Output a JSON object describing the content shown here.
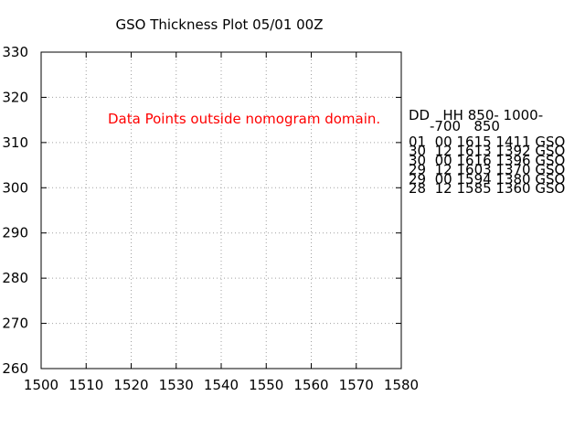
{
  "chart_data": {
    "type": "scatter",
    "title": "GSO Thickness Plot 05/01 00Z",
    "xlim": [
      1500,
      1580
    ],
    "xticks": [
      1500,
      1510,
      1520,
      1530,
      1540,
      1550,
      1560,
      1570,
      1580
    ],
    "ylim": [
      260,
      330
    ],
    "yticks": [
      260,
      270,
      280,
      290,
      300,
      310,
      320,
      330
    ],
    "grid": true,
    "annotation": "Data Points outside nomogram domain.",
    "annotation_color": "#ff0000",
    "side_table": {
      "header": [
        "DD   HH 850- 1000-",
        "-700   850"
      ],
      "rows": [
        "01  00 1615 1411 GSO",
        "30  12 1613 1392 GSO",
        "30  00 1616 1396 GSO",
        "29  12 1603 1370 GSO",
        "29  00 1594 1380 GSO",
        "28  12 1585 1360 GSO"
      ]
    }
  }
}
